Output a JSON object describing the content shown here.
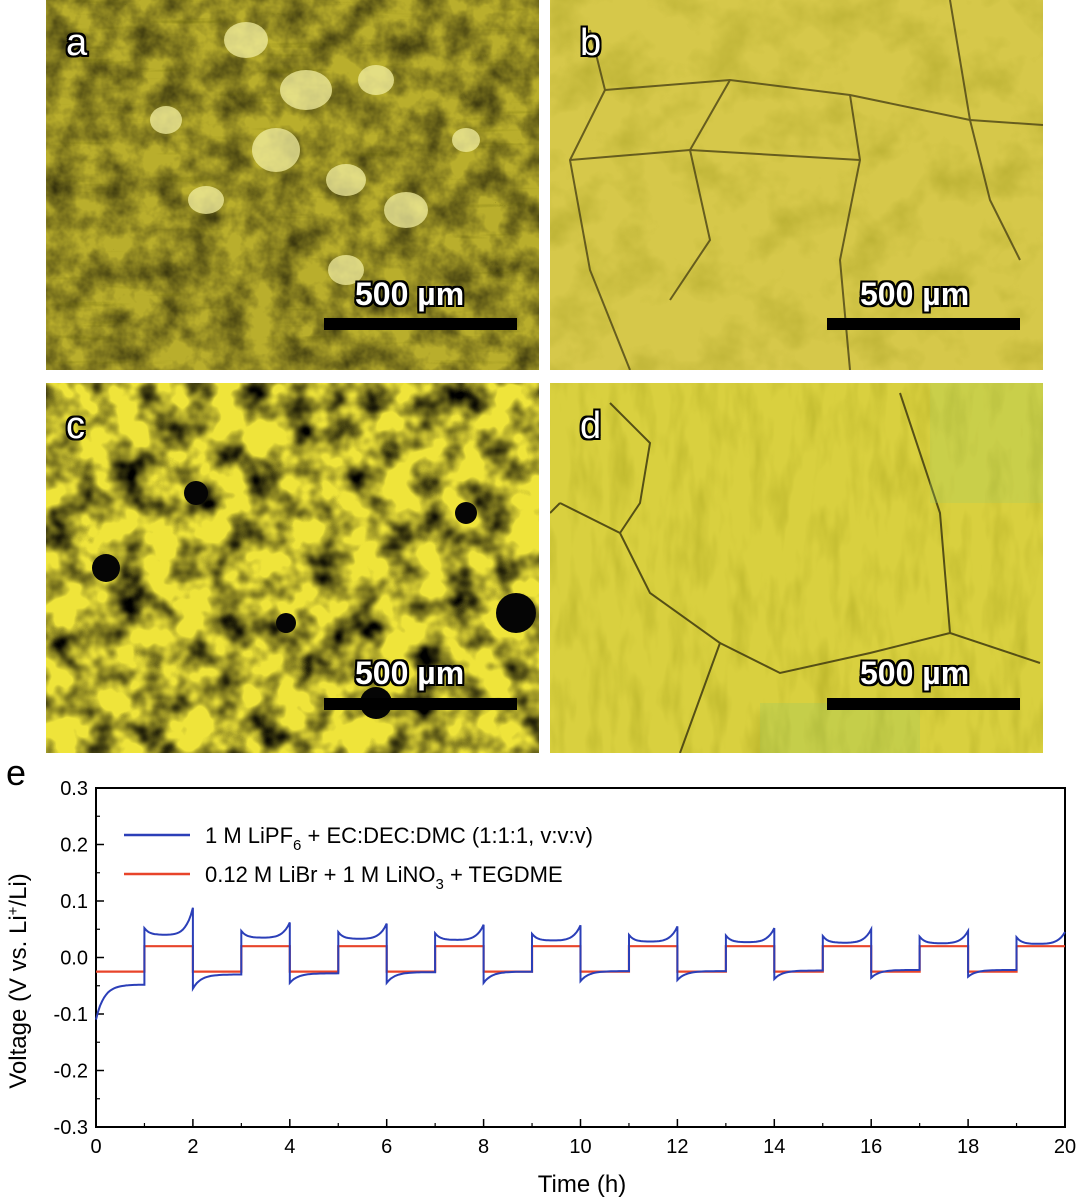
{
  "panels": [
    {
      "label": "a",
      "scale_text": "500 µm",
      "tone": "mottled-light"
    },
    {
      "label": "b",
      "scale_text": "500 µm",
      "tone": "smooth-grain"
    },
    {
      "label": "c",
      "scale_text": "500 µm",
      "tone": "dark-spots"
    },
    {
      "label": "d",
      "scale_text": "500 µm",
      "tone": "smooth-grain-bright"
    }
  ],
  "chart_label": "e",
  "colors": {
    "series1": "#2b3fb8",
    "series2": "#e8442a",
    "micro_base": "#c9c23a"
  },
  "chart_data": {
    "type": "line",
    "xlabel": "Time (h)",
    "ylabel": "Voltage (V vs. Li⁺/Li)",
    "xlim": [
      0,
      20
    ],
    "ylim": [
      -0.3,
      0.3
    ],
    "xticks": [
      0,
      2,
      4,
      6,
      8,
      10,
      12,
      14,
      16,
      18,
      20
    ],
    "yticks": [
      -0.3,
      -0.2,
      -0.1,
      0.0,
      0.1,
      0.2,
      0.3
    ],
    "ytick_labels": [
      "-0.3",
      "-0.2",
      "-0.1",
      "0.0",
      "0.1",
      "0.2",
      "0.3"
    ],
    "legend_position": "top-left",
    "series": [
      {
        "name": "1 M LiPF6 + EC:DEC:DMC (1:1:1, v:v:v)",
        "legend_parts": [
          "1 M LiPF",
          "6",
          " + EC:DEC:DMC (1:1:1, v:v:v)"
        ],
        "color": "#2b3fb8",
        "cycle_values": {
          "plating_start": [
            -0.11,
            -0.055,
            -0.045,
            -0.045,
            -0.045,
            -0.042,
            -0.04,
            -0.038,
            -0.036,
            -0.034
          ],
          "plating_end": [
            -0.048,
            -0.03,
            -0.028,
            -0.026,
            -0.025,
            -0.024,
            -0.024,
            -0.023,
            -0.022,
            -0.022
          ],
          "stripping_min": [
            0.04,
            0.035,
            0.033,
            0.031,
            0.03,
            0.028,
            0.027,
            0.026,
            0.025,
            0.024
          ],
          "stripping_end": [
            0.088,
            0.062,
            0.06,
            0.058,
            0.057,
            0.055,
            0.052,
            0.05,
            0.047,
            0.045
          ]
        }
      },
      {
        "name": "0.12 M LiBr + 1 M LiNO3 + TEGDME",
        "legend_parts": [
          "0.12 M LiBr + 1 M LiNO",
          "3",
          " + TEGDME"
        ],
        "color": "#e8442a",
        "plating_value": -0.025,
        "stripping_value": 0.02
      }
    ]
  }
}
